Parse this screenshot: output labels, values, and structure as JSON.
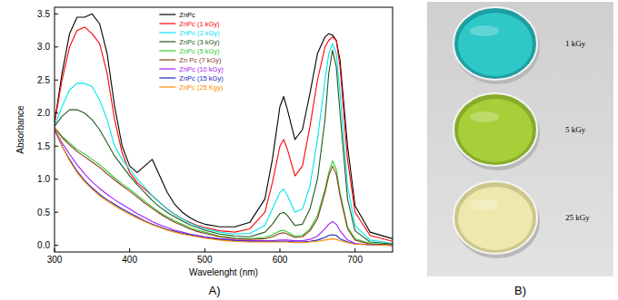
{
  "chart_data": {
    "type": "line",
    "xlabel": "Wavelenght (nm)",
    "ylabel": "Absorbance",
    "x": [
      300,
      310,
      320,
      330,
      340,
      350,
      360,
      370,
      380,
      390,
      400,
      410,
      420,
      430,
      440,
      450,
      460,
      470,
      480,
      490,
      500,
      520,
      540,
      560,
      580,
      590,
      600,
      605,
      610,
      620,
      630,
      640,
      650,
      660,
      665,
      670,
      675,
      680,
      690,
      700,
      720,
      750
    ],
    "series": [
      {
        "name": "ZnPc",
        "color": "#000000",
        "values": [
          1.85,
          2.6,
          3.2,
          3.45,
          3.45,
          3.5,
          3.35,
          2.9,
          2.1,
          1.5,
          1.2,
          1.1,
          1.2,
          1.3,
          1.05,
          0.8,
          0.62,
          0.5,
          0.42,
          0.36,
          0.32,
          0.28,
          0.28,
          0.35,
          0.7,
          1.3,
          2.1,
          2.25,
          2.05,
          1.6,
          1.75,
          2.3,
          2.9,
          3.15,
          3.2,
          3.18,
          3.1,
          2.8,
          1.5,
          0.6,
          0.2,
          0.1
        ]
      },
      {
        "name": "ZnPc (1 kGy)",
        "color": "#ff0000",
        "values": [
          1.85,
          2.5,
          3.0,
          3.25,
          3.3,
          3.2,
          3.05,
          2.6,
          1.9,
          1.4,
          1.1,
          0.95,
          0.85,
          0.75,
          0.65,
          0.55,
          0.47,
          0.4,
          0.35,
          0.3,
          0.27,
          0.22,
          0.2,
          0.25,
          0.5,
          0.95,
          1.5,
          1.6,
          1.45,
          1.05,
          1.2,
          1.8,
          2.5,
          3.0,
          3.1,
          3.15,
          3.1,
          2.7,
          1.3,
          0.5,
          0.15,
          0.06
        ]
      },
      {
        "name": "ZnPc (2 kGy)",
        "color": "#00e5ee",
        "values": [
          1.8,
          2.1,
          2.35,
          2.45,
          2.45,
          2.4,
          2.2,
          1.9,
          1.5,
          1.3,
          1.15,
          1.0,
          0.88,
          0.75,
          0.65,
          0.55,
          0.47,
          0.4,
          0.34,
          0.29,
          0.25,
          0.2,
          0.17,
          0.18,
          0.3,
          0.55,
          0.8,
          0.85,
          0.75,
          0.5,
          0.55,
          0.9,
          1.6,
          2.5,
          2.9,
          3.05,
          2.9,
          2.3,
          0.9,
          0.3,
          0.08,
          0.03
        ]
      },
      {
        "name": "ZnPc (3 kGy)",
        "color": "#1e5a1e",
        "values": [
          1.8,
          1.95,
          2.05,
          2.05,
          2.0,
          1.9,
          1.75,
          1.55,
          1.35,
          1.2,
          1.05,
          0.92,
          0.8,
          0.68,
          0.58,
          0.5,
          0.43,
          0.37,
          0.31,
          0.27,
          0.23,
          0.17,
          0.14,
          0.13,
          0.2,
          0.32,
          0.48,
          0.5,
          0.45,
          0.3,
          0.32,
          0.55,
          1.0,
          1.9,
          2.6,
          2.95,
          2.7,
          2.0,
          0.7,
          0.22,
          0.05,
          0.02
        ]
      },
      {
        "name": "ZnPc (5 kGy)",
        "color": "#33cc33",
        "values": [
          1.78,
          1.65,
          1.55,
          1.45,
          1.38,
          1.3,
          1.22,
          1.12,
          1.02,
          0.93,
          0.85,
          0.76,
          0.67,
          0.58,
          0.5,
          0.43,
          0.37,
          0.32,
          0.27,
          0.23,
          0.2,
          0.14,
          0.11,
          0.1,
          0.12,
          0.16,
          0.22,
          0.23,
          0.2,
          0.14,
          0.15,
          0.25,
          0.45,
          0.85,
          1.1,
          1.28,
          1.15,
          0.8,
          0.28,
          0.1,
          0.03,
          0.01
        ]
      },
      {
        "name": "Zn Pc (7 kGy)",
        "color": "#8b3a1a",
        "values": [
          1.78,
          1.63,
          1.52,
          1.42,
          1.34,
          1.26,
          1.18,
          1.08,
          0.99,
          0.9,
          0.82,
          0.73,
          0.64,
          0.56,
          0.48,
          0.41,
          0.35,
          0.3,
          0.25,
          0.21,
          0.18,
          0.13,
          0.1,
          0.09,
          0.1,
          0.13,
          0.18,
          0.19,
          0.17,
          0.12,
          0.13,
          0.22,
          0.4,
          0.8,
          1.05,
          1.2,
          1.08,
          0.75,
          0.25,
          0.08,
          0.02,
          0.01
        ]
      },
      {
        "name": "ZnPc (10 kGy)",
        "color": "#a020f0",
        "values": [
          1.75,
          1.55,
          1.38,
          1.22,
          1.08,
          0.96,
          0.86,
          0.77,
          0.69,
          0.62,
          0.55,
          0.48,
          0.42,
          0.36,
          0.31,
          0.27,
          0.23,
          0.2,
          0.17,
          0.15,
          0.13,
          0.1,
          0.08,
          0.07,
          0.07,
          0.07,
          0.08,
          0.08,
          0.08,
          0.07,
          0.07,
          0.09,
          0.14,
          0.25,
          0.32,
          0.36,
          0.32,
          0.22,
          0.08,
          0.03,
          0.01,
          0.0
        ]
      },
      {
        "name": "ZnPc (15 kGy)",
        "color": "#2020c0",
        "values": [
          1.75,
          1.5,
          1.3,
          1.12,
          0.98,
          0.87,
          0.77,
          0.69,
          0.62,
          0.55,
          0.49,
          0.43,
          0.37,
          0.32,
          0.28,
          0.24,
          0.21,
          0.18,
          0.16,
          0.14,
          0.12,
          0.09,
          0.07,
          0.06,
          0.06,
          0.06,
          0.06,
          0.06,
          0.06,
          0.05,
          0.05,
          0.06,
          0.08,
          0.12,
          0.15,
          0.16,
          0.15,
          0.1,
          0.05,
          0.02,
          0.01,
          0.0
        ]
      },
      {
        "name": "ZnPc (25 Kgy)",
        "color": "#ff8c00",
        "values": [
          1.8,
          1.5,
          1.28,
          1.1,
          0.96,
          0.85,
          0.75,
          0.67,
          0.6,
          0.53,
          0.47,
          0.41,
          0.36,
          0.31,
          0.27,
          0.23,
          0.2,
          0.17,
          0.15,
          0.13,
          0.11,
          0.08,
          0.06,
          0.05,
          0.05,
          0.05,
          0.05,
          0.05,
          0.05,
          0.04,
          0.04,
          0.05,
          0.06,
          0.08,
          0.09,
          0.1,
          0.09,
          0.07,
          0.04,
          0.02,
          0.01,
          0.0
        ]
      }
    ],
    "xlim": [
      300,
      750
    ],
    "xticks": [
      300,
      400,
      500,
      600,
      700
    ],
    "ylim": [
      -0.1,
      3.6
    ],
    "yticks": [
      {
        "value": 0,
        "label": "0.0"
      },
      {
        "value": 0.5,
        "label": "0.5"
      },
      {
        "value": 1,
        "label": "1.0"
      },
      {
        "value": 1.5,
        "label": "1.5"
      },
      {
        "value": 2,
        "label": "2.0"
      },
      {
        "value": 2.5,
        "label": "2.5"
      },
      {
        "value": 3,
        "label": "3.0"
      },
      {
        "value": 3.5,
        "label": "3.5"
      }
    ],
    "grid": false,
    "legend": "top"
  },
  "panel_labels": [
    "A)",
    "B)"
  ],
  "photo": {
    "labels": [
      "1 kGy",
      "5 kGy",
      "25 kGy"
    ]
  }
}
